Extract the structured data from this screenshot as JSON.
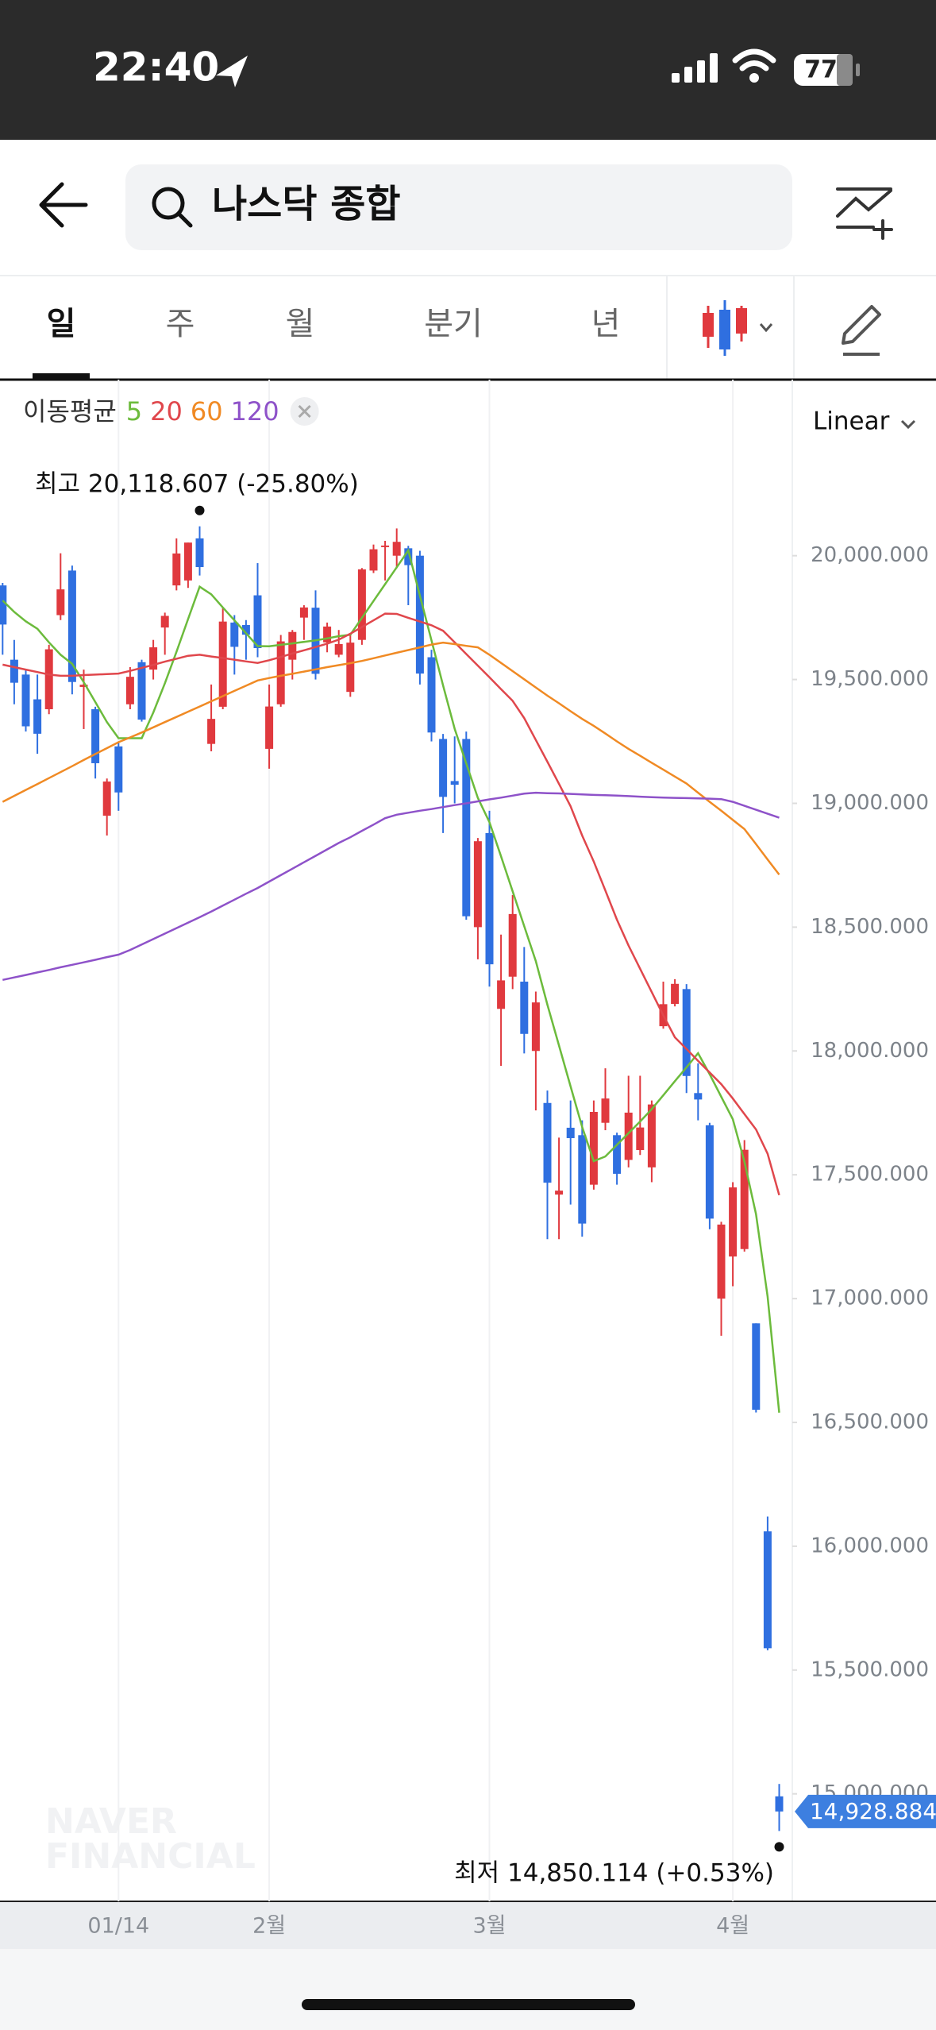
{
  "status_bar": {
    "time": "22:40",
    "battery": "77"
  },
  "header": {
    "search": "나스닥 종합"
  },
  "tabs": [
    "일",
    "주",
    "월",
    "분기",
    "년"
  ],
  "selected_tab": 0,
  "chart_data": {
    "type": "candlestick",
    "scale_label": "Linear",
    "ma_label": "이동평균",
    "high_label": "최고 20,118.607 (-25.80%)",
    "low_label": "최저 14,850.114 (+0.53%)",
    "last_label": "14,928.884",
    "watermark": [
      "NAVER",
      "FINANCIAL"
    ],
    "up_color": "#e0393e",
    "down_color": "#2f6fe0",
    "grid": "x",
    "ylim": [
      14566,
      20711
    ],
    "yticks": [
      {
        "value": 15000,
        "label": "15,000.000"
      },
      {
        "value": 15500,
        "label": "15,500.000"
      },
      {
        "value": 16000,
        "label": "16,000.000"
      },
      {
        "value": 16500,
        "label": "16,500.000"
      },
      {
        "value": 17000,
        "label": "17,000.000"
      },
      {
        "value": 17500,
        "label": "17,500.000"
      },
      {
        "value": 18000,
        "label": "18,000.000"
      },
      {
        "value": 18500,
        "label": "18,500.000"
      },
      {
        "value": 19000,
        "label": "19,000.000"
      },
      {
        "value": 19500,
        "label": "19,500.000"
      },
      {
        "value": 20000,
        "label": "20,000.000"
      }
    ],
    "categories": [
      null,
      null,
      null,
      null,
      null,
      null,
      null,
      null,
      null,
      null,
      "01/14",
      null,
      null,
      null,
      null,
      null,
      null,
      null,
      null,
      null,
      null,
      null,
      null,
      "2월",
      null,
      null,
      null,
      null,
      null,
      null,
      null,
      null,
      null,
      null,
      null,
      null,
      null,
      null,
      null,
      null,
      null,
      null,
      "3월",
      null,
      null,
      null,
      null,
      null,
      null,
      null,
      null,
      null,
      null,
      null,
      null,
      null,
      null,
      null,
      null,
      null,
      null,
      null,
      null,
      "4월",
      null,
      null,
      null,
      null
    ],
    "open": [
      19880,
      19580,
      19520,
      19420,
      19380,
      19760,
      19940,
      19470,
      19380,
      18950,
      19230,
      19400,
      19570,
      19540,
      19710,
      19880,
      19900,
      20070,
      19240,
      19390,
      19730,
      19720,
      19840,
      19220,
      19400,
      19580,
      19750,
      19790,
      19650,
      19600,
      19450,
      19660,
      19940,
      20040,
      20000,
      20030,
      20000,
      19590,
      19260,
      19090,
      19260,
      18500,
      18880,
      18170,
      18300,
      18280,
      18000,
      17790,
      17420,
      17690,
      17660,
      17460,
      17710,
      17660,
      17560,
      17600,
      17530,
      18100,
      18190,
      18250,
      17830,
      17700,
      17000,
      17170,
      17200,
      16900,
      16060,
      14990
    ],
    "high": [
      19890,
      19660,
      19540,
      19520,
      19640,
      20010,
      19960,
      19540,
      19390,
      19100,
      19250,
      19550,
      19580,
      19660,
      19770,
      20070,
      20053,
      20118.607,
      19480,
      19790,
      19760,
      19740,
      19970,
      19480,
      19680,
      19700,
      19800,
      19860,
      19730,
      19700,
      19680,
      19950,
      20045,
      20060,
      20110,
      20040,
      20020,
      19620,
      19280,
      19270,
      19290,
      18860,
      18970,
      18470,
      18630,
      18420,
      18240,
      17840,
      17650,
      17800,
      17720,
      17800,
      17930,
      17670,
      17900,
      17900,
      17800,
      18280,
      18290,
      18270,
      17950,
      17710,
      17310,
      17470,
      17640,
      16900,
      16120,
      15040
    ],
    "low": [
      19600,
      19400,
      19290,
      19200,
      19360,
      19740,
      19440,
      19300,
      19100,
      18870,
      18970,
      19380,
      19330,
      19500,
      19600,
      19860,
      19870,
      19920,
      19210,
      19380,
      19520,
      19580,
      19590,
      19140,
      19390,
      19500,
      19660,
      19500,
      19610,
      19590,
      19430,
      19640,
      19930,
      19900,
      19950,
      19800,
      19480,
      19250,
      18880,
      19000,
      18530,
      18370,
      18260,
      17940,
      18250,
      17990,
      17760,
      17240,
      17240,
      17380,
      17250,
      17440,
      17680,
      17460,
      17530,
      17580,
      17470,
      18090,
      18180,
      17830,
      17720,
      17280,
      16850,
      17050,
      17190,
      16540,
      15580,
      14850.114
    ],
    "close": [
      19722,
      19487,
      19311,
      19281,
      19622,
      19864,
      19490,
      19479,
      19162,
      19088,
      19044,
      19511,
      19338,
      19630,
      19757,
      20009,
      20053,
      19954,
      19341,
      19734,
      19632,
      19681,
      19627,
      19391,
      19654,
      19692,
      19791,
      19523,
      19714,
      19643,
      19649,
      19945,
      20026,
      20041,
      20056,
      19962,
      19524,
      19286,
      19026,
      19075,
      18544,
      18847,
      18350,
      18285,
      18553,
      18069,
      18196,
      17468,
      17436,
      17648,
      17303,
      17754,
      17808,
      17504,
      17751,
      17691,
      17784,
      18189,
      18271,
      17899,
      17804,
      17323,
      17299,
      17449,
      17601,
      16551,
      15588,
      14928.884
    ],
    "series": [
      {
        "name": "5",
        "color": "#6cbb3c",
        "values": [
          19819,
          19773,
          19735,
          19705,
          19650,
          19600,
          19563,
          19489,
          19409,
          19328,
          19263,
          19263,
          19263,
          19367,
          19485,
          19612,
          19744,
          19875,
          19844,
          19791,
          19739,
          19687,
          19635,
          19634,
          19640,
          19646,
          19652,
          19658,
          19666,
          19675,
          19681,
          19749,
          19817,
          19885,
          19953,
          20021,
          19839,
          19658,
          19476,
          19301,
          19161,
          19022,
          18924,
          18786,
          18645,
          18504,
          18363,
          18187,
          18022,
          17857,
          17693,
          17555,
          17574,
          17621,
          17668,
          17715,
          17765,
          17821,
          17878,
          17934,
          17991,
          17906,
          17815,
          17724,
          17553,
          17341,
          17008,
          16539
        ]
      },
      {
        "name": "20",
        "color": "#e0474c",
        "values": [
          19560,
          19550,
          19540,
          19530,
          19520,
          19515,
          19515,
          19518,
          19520,
          19522,
          19524,
          19535,
          19547,
          19559,
          19572,
          19584,
          19596,
          19600,
          19593,
          19587,
          19580,
          19573,
          19567,
          19578,
          19591,
          19605,
          19618,
          19631,
          19645,
          19661,
          19685,
          19712,
          19739,
          19766,
          19765,
          19749,
          19734,
          19719,
          19697,
          19650,
          19603,
          19556,
          19509,
          19461,
          19414,
          19344,
          19256,
          19168,
          19079,
          18988,
          18870,
          18765,
          18648,
          18530,
          18426,
          18332,
          18238,
          18144,
          18055,
          18008,
          17960,
          17913,
          17866,
          17808,
          17745,
          17683,
          17585,
          17418
        ]
      },
      {
        "name": "60",
        "color": "#f08a24",
        "values": [
          19006,
          19030,
          19054,
          19078,
          19102,
          19126,
          19150,
          19175,
          19199,
          19223,
          19247,
          19266,
          19286,
          19307,
          19328,
          19349,
          19370,
          19391,
          19412,
          19433,
          19454,
          19475,
          19496,
          19506,
          19515,
          19523,
          19532,
          19541,
          19550,
          19558,
          19566,
          19575,
          19586,
          19597,
          19608,
          19619,
          19630,
          19641,
          19649,
          19643,
          19636,
          19630,
          19600,
          19567,
          19534,
          19501,
          19468,
          19435,
          19404,
          19372,
          19341,
          19313,
          19282,
          19250,
          19220,
          19192,
          19164,
          19136,
          19108,
          19080,
          19043,
          19006,
          18970,
          18933,
          18896,
          18835,
          18773,
          18712
        ]
      },
      {
        "name": "120",
        "color": "#8e52c9",
        "values": [
          18287,
          18297,
          18307,
          18317,
          18327,
          18338,
          18348,
          18358,
          18368,
          18379,
          18389,
          18408,
          18430,
          18452,
          18474,
          18496,
          18518,
          18540,
          18563,
          18587,
          18611,
          18635,
          18658,
          18684,
          18710,
          18736,
          18762,
          18788,
          18814,
          18840,
          18863,
          18889,
          18914,
          18940,
          18954,
          18962,
          18970,
          18977,
          18985,
          18993,
          19000,
          19008,
          19016,
          19023,
          19031,
          19039,
          19043,
          19041,
          19040,
          19038,
          19036,
          19034,
          19033,
          19031,
          19029,
          19027,
          19025,
          19023,
          19022,
          19021,
          19020,
          19019,
          19017,
          19006,
          18990,
          18974,
          18958,
          18942
        ]
      }
    ]
  }
}
